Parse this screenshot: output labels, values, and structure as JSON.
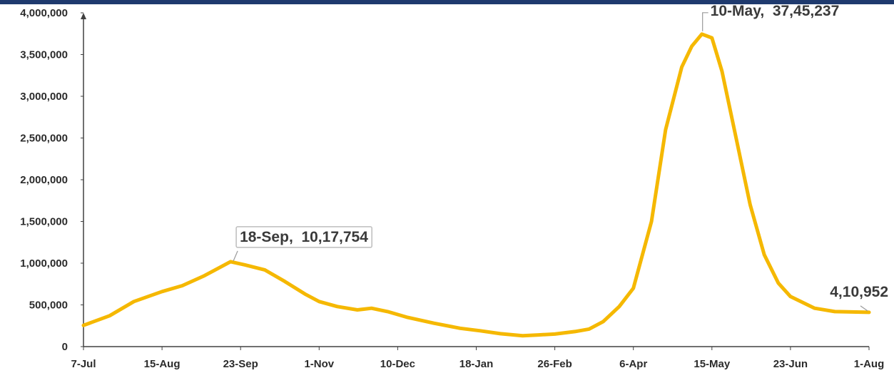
{
  "colors": {
    "series": "#f5b800",
    "top_bar": "#1f3a6e"
  },
  "chart_data": {
    "type": "line",
    "title": "",
    "xlabel": "",
    "ylabel": "",
    "ylim": [
      0,
      4000000
    ],
    "y_ticks": [
      0,
      500000,
      1000000,
      1500000,
      2000000,
      2500000,
      3000000,
      3500000,
      4000000
    ],
    "y_tick_labels": [
      "0",
      "500,000",
      "1,000,000",
      "1,500,000",
      "2,000,000",
      "2,500,000",
      "3,000,000",
      "3,500,000",
      "4,000,000"
    ],
    "x_ticks": [
      "2020-07-07",
      "2020-08-15",
      "2020-09-23",
      "2020-11-01",
      "2020-12-10",
      "2021-01-18",
      "2021-02-26",
      "2021-04-06",
      "2021-05-15",
      "2021-06-23",
      "2021-08-01"
    ],
    "x_tick_labels": [
      "7-Jul",
      "15-Aug",
      "23-Sep",
      "1-Nov",
      "10-Dec",
      "18-Jan",
      "26-Feb",
      "6-Apr",
      "15-May",
      "23-Jun",
      "1-Aug"
    ],
    "grid": false,
    "series": [
      {
        "x": [
          "2020-07-07",
          "2020-07-20",
          "2020-08-01",
          "2020-08-15",
          "2020-08-25",
          "2020-09-05",
          "2020-09-18",
          "2020-09-25",
          "2020-10-05",
          "2020-10-15",
          "2020-10-25",
          "2020-11-01",
          "2020-11-10",
          "2020-11-20",
          "2020-11-27",
          "2020-12-05",
          "2020-12-15",
          "2020-12-28",
          "2021-01-10",
          "2021-01-20",
          "2021-01-30",
          "2021-02-10",
          "2021-02-18",
          "2021-02-26",
          "2021-03-08",
          "2021-03-15",
          "2021-03-22",
          "2021-03-30",
          "2021-04-06",
          "2021-04-15",
          "2021-04-22",
          "2021-04-30",
          "2021-05-05",
          "2021-05-10",
          "2021-05-15",
          "2021-05-20",
          "2021-05-27",
          "2021-06-03",
          "2021-06-10",
          "2021-06-17",
          "2021-06-23",
          "2021-07-05",
          "2021-07-15",
          "2021-08-01"
        ],
        "values": [
          255000,
          370000,
          540000,
          660000,
          730000,
          850000,
          1017754,
          980000,
          920000,
          780000,
          630000,
          540000,
          480000,
          440000,
          460000,
          420000,
          350000,
          280000,
          220000,
          190000,
          155000,
          130000,
          140000,
          150000,
          180000,
          210000,
          300000,
          480000,
          700000,
          1500000,
          2600000,
          3350000,
          3600000,
          3745237,
          3700000,
          3300000,
          2500000,
          1700000,
          1100000,
          760000,
          600000,
          460000,
          420000,
          410952
        ]
      }
    ],
    "annotations": [
      {
        "label": "18-Sep,  10,17,754",
        "x": "2020-09-18",
        "y": 1017754,
        "boxed": true
      },
      {
        "label": "10-May,  37,45,237",
        "x": "2021-05-10",
        "y": 3745237,
        "boxed": false
      },
      {
        "label": "4,10,952",
        "x": "2021-08-01",
        "y": 410952,
        "boxed": false
      }
    ]
  }
}
